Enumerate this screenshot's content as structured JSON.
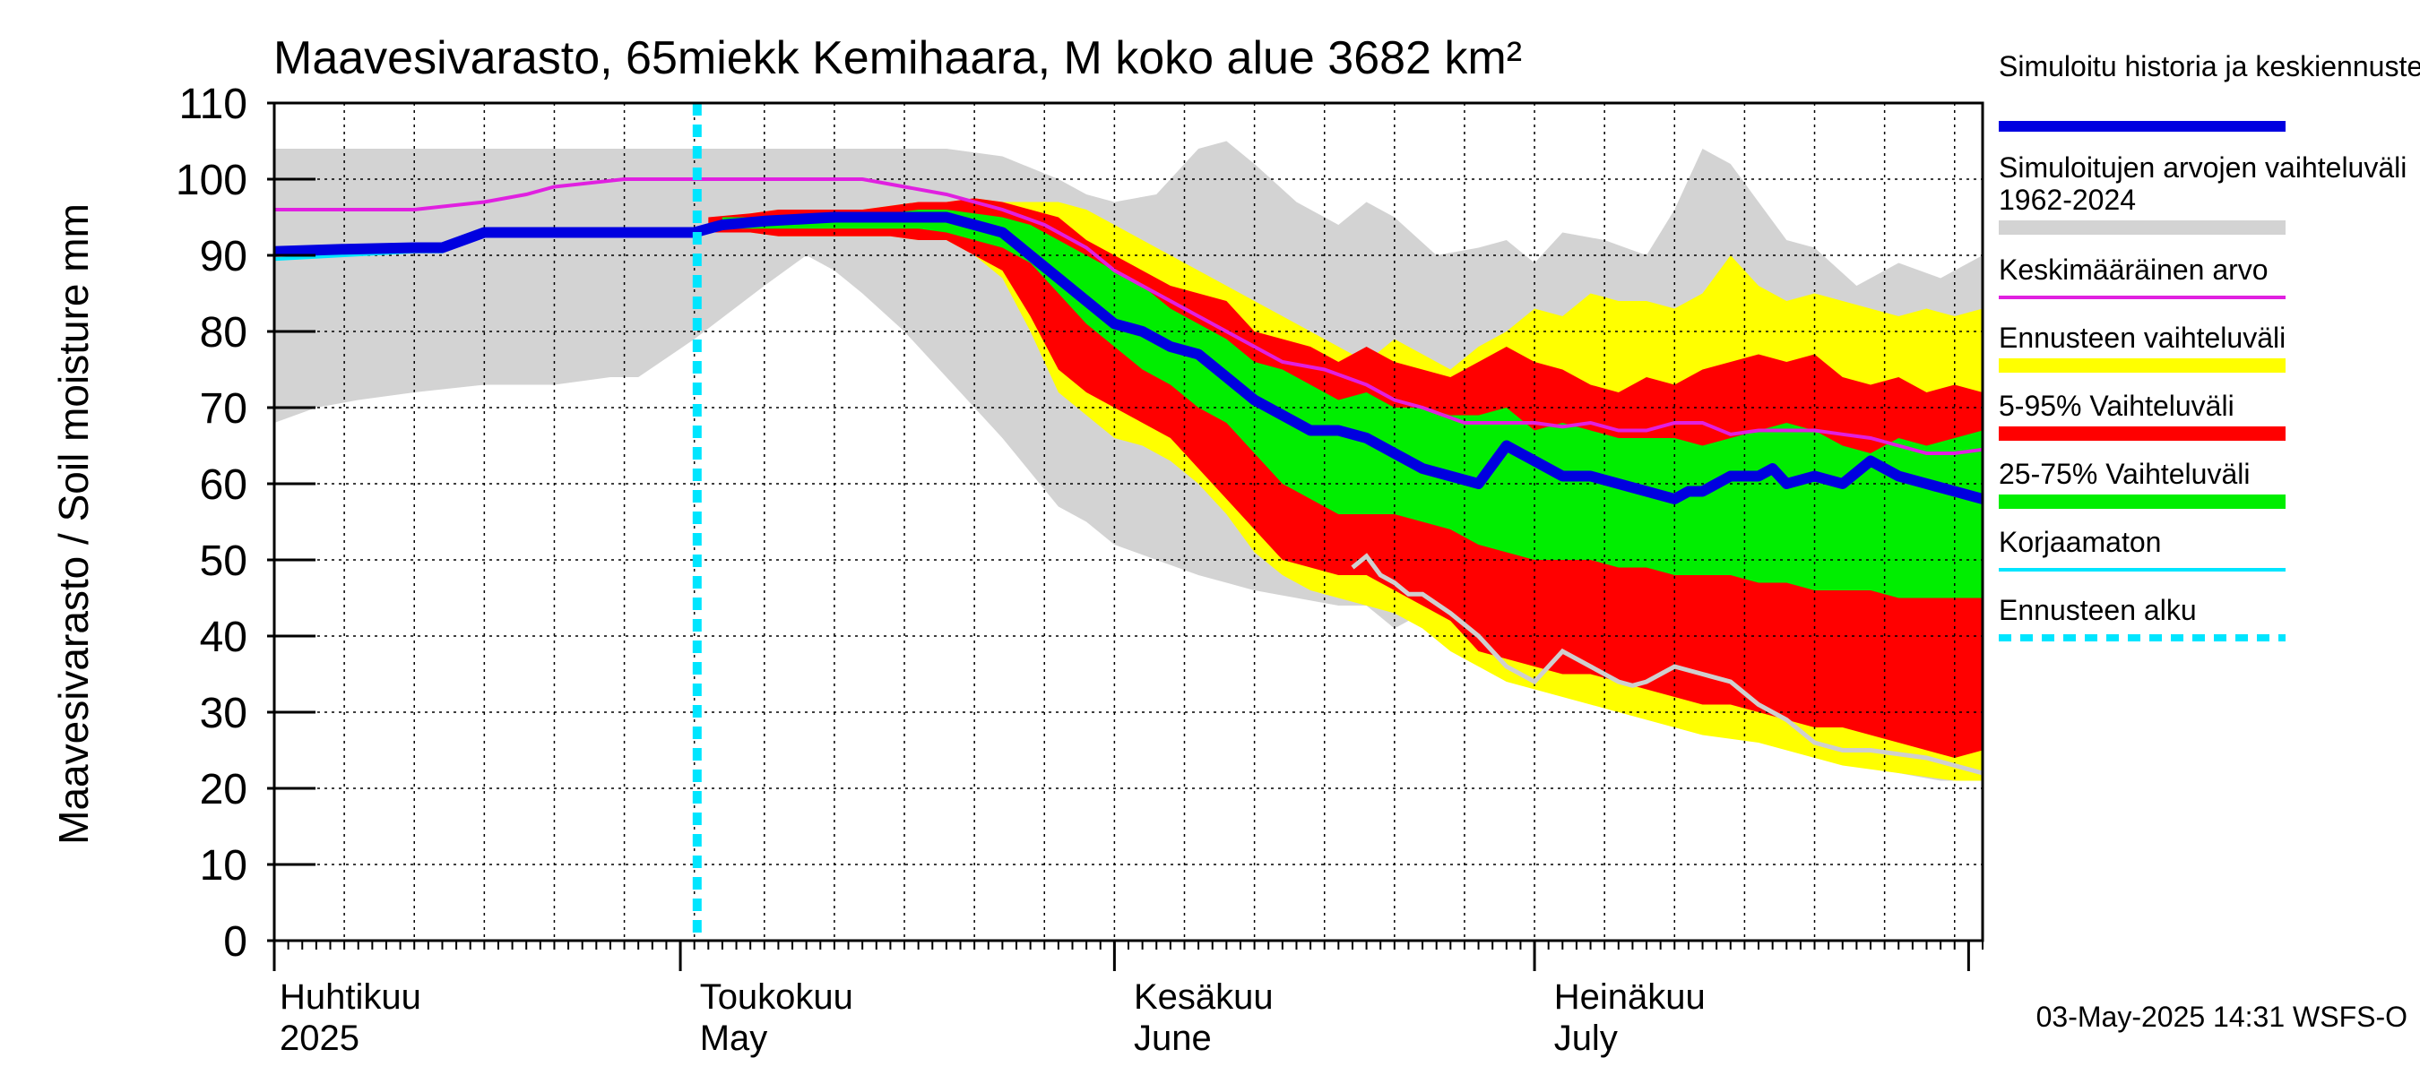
{
  "chart_data": {
    "type": "area",
    "title": "Maavesivarasto, 65miekk Kemihaara, M koko alue 3682 km²",
    "ylabel": "Maavesivarasto / Soil moisture   mm",
    "xlabel": "",
    "ylim": [
      0,
      110
    ],
    "yticks": [
      0,
      10,
      20,
      30,
      40,
      50,
      60,
      70,
      80,
      90,
      100,
      110
    ],
    "xlim_days": [
      0,
      122
    ],
    "month_labels": [
      {
        "fi": "Huhtikuu",
        "en": "2025",
        "day": 0
      },
      {
        "fi": "Toukokuu",
        "en": "May",
        "day": 30
      },
      {
        "fi": "Kesäkuu",
        "en": "June",
        "day": 61
      },
      {
        "fi": "Heinäkuu",
        "en": "July",
        "day": 91
      }
    ],
    "month_boundaries": [
      0,
      29,
      60,
      90,
      121
    ],
    "forecast_start_day": 30.2,
    "grid": true,
    "legend_position": "right",
    "legend": [
      {
        "label": "Simuloitu historia ja keskiennuste",
        "color": "#0000e0",
        "style": "thick"
      },
      {
        "label": "Simuloitujen arvojen vaihteluväli 1962-2024",
        "color": "#d3d3d3",
        "style": "band"
      },
      {
        "label": "Keskimääräinen arvo",
        "color": "#e020e0",
        "style": "line"
      },
      {
        "label": "Ennusteen vaihteluväli",
        "color": "#ffff00",
        "style": "band"
      },
      {
        "label": "5-95% Vaihteluväli",
        "color": "#ff0000",
        "style": "band"
      },
      {
        "label": "25-75% Vaihteluväli",
        "color": "#00ee00",
        "style": "band"
      },
      {
        "label": "Korjaamaton",
        "color": "#00e5ff",
        "style": "line"
      },
      {
        "label": "Ennusteen alku",
        "color": "#00e5ff",
        "style": "dashed"
      }
    ],
    "series": {
      "hist_range": {
        "x": [
          0,
          3,
          6,
          10,
          15,
          20,
          24,
          26,
          30,
          35,
          38,
          40,
          42,
          45,
          48,
          52,
          56,
          58,
          60,
          63,
          66,
          68,
          70,
          73,
          76,
          78,
          80,
          83,
          86,
          88,
          90,
          92,
          95,
          98,
          100,
          102,
          104,
          106,
          108,
          110,
          113,
          116,
          119,
          122
        ],
        "upper": [
          104,
          104,
          104,
          104,
          104,
          104,
          104,
          104,
          104,
          104,
          104,
          104,
          104,
          104,
          104,
          103,
          100,
          98,
          97,
          98,
          104,
          105,
          102,
          97,
          94,
          97,
          95,
          90,
          91,
          92,
          89,
          93,
          92,
          90,
          96,
          104,
          102,
          97,
          92,
          91,
          86,
          89,
          87,
          90
        ],
        "lower": [
          68,
          70,
          71,
          72,
          73,
          73,
          74,
          74,
          79,
          86,
          90,
          88,
          85,
          80,
          74,
          66,
          57,
          55,
          52,
          50,
          48,
          47,
          46,
          45,
          44,
          44,
          41,
          44,
          45,
          45,
          44,
          39,
          37,
          34,
          31,
          30,
          29,
          27,
          26,
          25,
          23,
          22,
          21,
          21
        ]
      },
      "forecast_range": {
        "x": [
          32,
          34,
          36,
          38,
          40,
          42,
          44,
          46,
          48,
          50,
          52,
          54,
          56,
          58,
          60,
          62,
          64,
          66,
          68,
          70,
          72,
          74,
          76,
          78,
          80,
          82,
          84,
          86,
          88,
          90,
          92,
          94,
          96,
          98,
          100,
          102,
          104,
          106,
          108,
          110,
          112,
          114,
          116,
          118,
          120,
          122
        ],
        "upper": [
          95,
          95.5,
          96,
          96,
          96,
          96,
          96.5,
          97,
          97,
          97.5,
          97,
          97,
          97,
          96,
          94,
          92,
          90,
          88,
          86,
          84,
          82,
          80,
          78,
          76,
          79,
          77,
          75,
          78,
          80,
          83,
          82,
          85,
          84,
          84,
          83,
          85,
          90,
          86,
          84,
          85,
          84,
          83,
          82,
          83,
          82,
          83
        ],
        "lower": [
          93,
          93,
          92.5,
          92.5,
          92.5,
          92.5,
          92.5,
          92,
          92,
          90,
          87,
          80,
          72,
          69,
          66,
          65,
          63,
          60,
          56,
          51,
          48,
          46,
          45,
          44,
          43,
          41,
          38,
          36,
          34,
          33,
          32,
          31,
          30,
          29,
          28,
          27,
          26.5,
          26,
          25,
          24,
          23,
          22.5,
          22,
          21.5,
          21,
          21
        ]
      },
      "p5_95": {
        "x": [
          31,
          34,
          36,
          38,
          40,
          42,
          44,
          46,
          48,
          50,
          52,
          54,
          56,
          58,
          60,
          62,
          64,
          66,
          68,
          70,
          72,
          74,
          76,
          78,
          80,
          82,
          84,
          86,
          88,
          90,
          92,
          94,
          96,
          98,
          100,
          102,
          104,
          106,
          108,
          110,
          112,
          114,
          116,
          118,
          120,
          122
        ],
        "upper": [
          95,
          95.5,
          96,
          96,
          96,
          96,
          96.5,
          97,
          97,
          97.5,
          97,
          96,
          95,
          92,
          90,
          88,
          86,
          85,
          84,
          80,
          79,
          78,
          76,
          78,
          76,
          75,
          74,
          76,
          78,
          76,
          75,
          73,
          72,
          74,
          73,
          75,
          76,
          77,
          76,
          77,
          74,
          73,
          74,
          72,
          73,
          72
        ],
        "lower": [
          93,
          93,
          92.5,
          92.5,
          92.5,
          92.5,
          92.5,
          92,
          92,
          90,
          88,
          82,
          75,
          72,
          70,
          68,
          66,
          62,
          58,
          54,
          50,
          49,
          48,
          48,
          46,
          44,
          42,
          38,
          37,
          36,
          35,
          35,
          34,
          33,
          32,
          31,
          31,
          30,
          29,
          28,
          28,
          27,
          26,
          25,
          24,
          25
        ]
      },
      "p25_75": {
        "x": [
          32,
          34,
          36,
          38,
          40,
          42,
          44,
          46,
          48,
          50,
          52,
          54,
          56,
          58,
          60,
          62,
          64,
          66,
          68,
          70,
          72,
          74,
          76,
          78,
          80,
          82,
          84,
          86,
          88,
          90,
          92,
          94,
          96,
          98,
          100,
          102,
          104,
          106,
          108,
          110,
          112,
          114,
          116,
          118,
          120,
          122
        ],
        "upper": [
          95,
          95,
          95,
          95,
          95.5,
          95.5,
          95.5,
          96,
          96,
          95.5,
          95,
          94,
          92,
          90,
          88,
          86,
          83,
          81,
          79,
          76,
          75,
          73,
          71,
          72,
          70,
          70,
          69,
          69,
          70,
          67,
          68,
          67,
          66,
          66,
          66,
          65,
          66,
          67,
          68,
          67,
          65,
          64,
          66,
          65,
          66,
          67
        ],
        "lower": [
          93.5,
          93.5,
          93.5,
          93.5,
          93.5,
          93.5,
          93.5,
          93.5,
          93,
          92,
          91,
          89,
          85,
          81,
          78,
          75,
          73,
          70,
          68,
          64,
          60,
          58,
          56,
          56,
          56,
          55,
          54,
          52,
          51,
          50,
          50,
          50,
          49,
          49,
          48,
          48,
          48,
          47,
          47,
          46,
          46,
          46,
          45,
          45,
          45,
          45
        ]
      },
      "mean": {
        "x": [
          0,
          5,
          10,
          15,
          18,
          20,
          25,
          30,
          35,
          40,
          42,
          45,
          48,
          50,
          52,
          55,
          58,
          60,
          63,
          66,
          68,
          70,
          72,
          75,
          78,
          80,
          82,
          85,
          88,
          90,
          92,
          94,
          96,
          98,
          100,
          102,
          104,
          106,
          108,
          110,
          112,
          114,
          116,
          118,
          120,
          122
        ],
        "y": [
          96,
          96,
          96,
          97,
          98,
          99,
          100,
          100,
          100,
          100,
          100,
          99,
          98,
          97,
          96,
          94,
          91,
          88,
          85,
          82,
          80,
          78,
          76,
          75,
          73,
          71,
          70,
          68,
          68,
          68,
          67.5,
          68,
          67,
          67,
          68,
          68,
          66.5,
          67,
          67,
          67,
          66.5,
          66,
          65,
          64,
          64,
          64.5
        ]
      },
      "median": {
        "x": [
          0,
          5,
          10,
          12,
          15,
          20,
          25,
          28,
          30,
          32,
          35,
          40,
          45,
          48,
          50,
          52,
          54,
          56,
          58,
          60,
          62,
          64,
          66,
          68,
          70,
          72,
          74,
          76,
          78,
          80,
          82,
          84,
          86,
          88,
          89,
          90,
          92,
          94,
          96,
          98,
          100,
          101,
          102,
          104,
          106,
          107,
          108,
          110,
          112,
          114,
          116,
          118,
          120,
          122
        ],
        "y": [
          90.5,
          90.8,
          91,
          91,
          93,
          93,
          93,
          93,
          93,
          94,
          94.5,
          95,
          95,
          95,
          94,
          93,
          90,
          87,
          84,
          81,
          80,
          78,
          77,
          74,
          71,
          69,
          67,
          67,
          66,
          64,
          62,
          61,
          60,
          65,
          64,
          63,
          61,
          61,
          60,
          59,
          58,
          59,
          59,
          61,
          61,
          62,
          60,
          61,
          60,
          63,
          61,
          60,
          59,
          58
        ]
      },
      "uncorrected": {
        "x": [
          0,
          5,
          10,
          12,
          15,
          20,
          25,
          28,
          30,
          32,
          35,
          40,
          45
        ],
        "y": [
          89.5,
          90,
          90.5,
          90.5,
          93,
          93,
          93,
          93,
          93,
          94,
          94.5,
          95,
          95
        ]
      },
      "gray_member": {
        "x": [
          77,
          78,
          79,
          80,
          81,
          82,
          84,
          86,
          88,
          90,
          92,
          94,
          96,
          97,
          98,
          99,
          100,
          102,
          104,
          106,
          108,
          110,
          112,
          114,
          116,
          118,
          120,
          122
        ],
        "y": [
          49,
          50.5,
          48,
          47,
          45.5,
          45.5,
          43,
          40,
          36,
          34,
          38,
          36,
          34,
          33.5,
          34,
          35,
          36,
          35,
          34,
          31,
          29,
          26,
          25,
          25,
          24.5,
          24,
          23,
          22
        ]
      }
    },
    "footer": "03-May-2025 14:31 WSFS-O"
  }
}
